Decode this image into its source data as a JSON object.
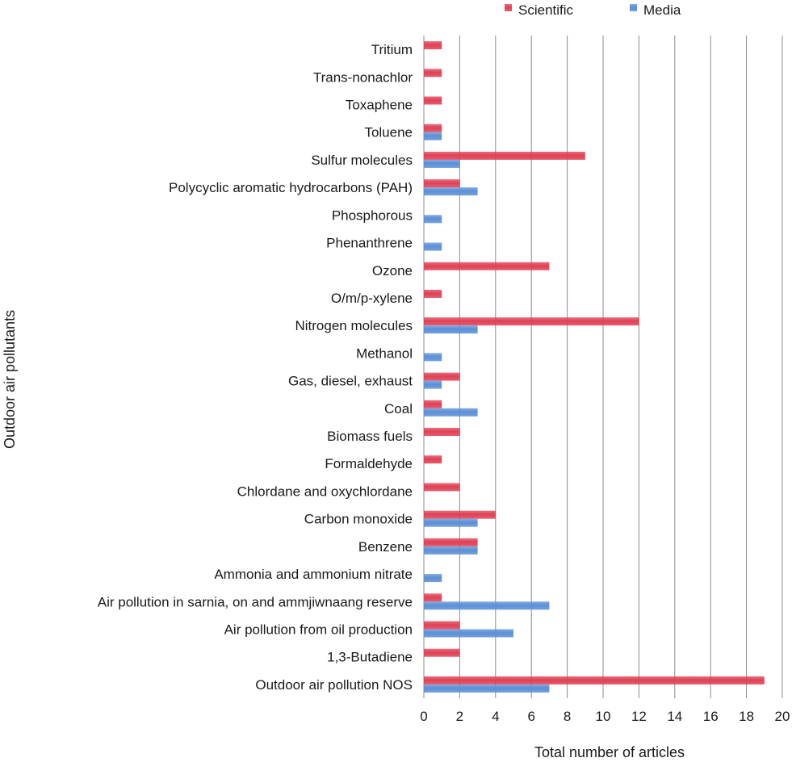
{
  "chart_data": {
    "type": "bar",
    "orientation": "horizontal",
    "title": "",
    "xlabel": "Total number of articles",
    "ylabel": "Outdoor air pollutants",
    "xlim": [
      0,
      20
    ],
    "xticks": [
      0,
      2,
      4,
      6,
      8,
      10,
      12,
      14,
      16,
      18,
      20
    ],
    "grid": true,
    "legend_position": "top-center",
    "categories": [
      "Tritium",
      "Trans-nonachlor",
      "Toxaphene",
      "Toluene",
      "Sulfur molecules",
      "Polycyclic aromatic hydrocarbons (PAH)",
      "Phosphorous",
      "Phenanthrene",
      "Ozone",
      "O/m/p-xylene",
      "Nitrogen molecules",
      "Methanol",
      "Gas, diesel, exhaust",
      "Coal",
      "Biomass fuels",
      "Formaldehyde",
      "Chlordane and oxychlordane",
      "Carbon monoxide",
      "Benzene",
      "Ammonia and ammonium nitrate",
      "Air pollution in sarnia, on and ammjiwnaang reserve",
      "Air pollution from oil production",
      "1,3-Butadiene",
      "Outdoor air pollution NOS"
    ],
    "series": [
      {
        "name": "Scientific",
        "color": "#e04055",
        "values": [
          1,
          1,
          1,
          1,
          9,
          2,
          0,
          0,
          7,
          1,
          12,
          0,
          2,
          1,
          2,
          1,
          2,
          4,
          3,
          0,
          1,
          2,
          2,
          19
        ]
      },
      {
        "name": "Media",
        "color": "#5b8fd6",
        "values": [
          0,
          0,
          0,
          1,
          2,
          3,
          1,
          1,
          0,
          0,
          3,
          1,
          1,
          3,
          0,
          0,
          0,
          3,
          3,
          1,
          7,
          5,
          0,
          7
        ]
      }
    ]
  }
}
